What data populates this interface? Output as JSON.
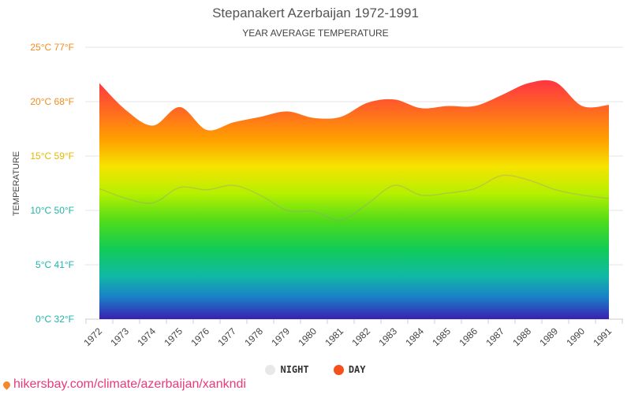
{
  "title": "Stepanakert Azerbaijan 1972-1991",
  "subtitle": "YEAR AVERAGE TEMPERATURE",
  "watermark": "hikersbay.com/climate/azerbaijan/xankndi",
  "legend": {
    "night_label": "NIGHT",
    "day_label": "DAY",
    "night_color": "#e8e8e8",
    "day_color": "#f4511e"
  },
  "colors": {
    "tick_warm": "#f28c1f",
    "tick_mid": "#e6b800",
    "tick_cool": "#1fb5a8",
    "axis_label": "#444444"
  },
  "chart_data": {
    "type": "area",
    "title": "Stepanakert Azerbaijan 1972-1991",
    "subtitle": "YEAR AVERAGE TEMPERATURE",
    "ylabel": "TEMPERATURE",
    "xlabel": "",
    "ylim": [
      0,
      25
    ],
    "y_ticks": [
      {
        "value": 0,
        "label": "0°C 32°F"
      },
      {
        "value": 5,
        "label": "5°C 41°F"
      },
      {
        "value": 10,
        "label": "10°C 50°F"
      },
      {
        "value": 15,
        "label": "15°C 59°F"
      },
      {
        "value": 20,
        "label": "20°C 68°F"
      },
      {
        "value": 25,
        "label": "25°C 77°F"
      }
    ],
    "grid": true,
    "legend_position": "bottom-center",
    "categories": [
      "1972",
      "1973",
      "1974",
      "1975",
      "1976",
      "1977",
      "1978",
      "1979",
      "1980",
      "1981",
      "1982",
      "1983",
      "1984",
      "1985",
      "1986",
      "1987",
      "1988",
      "1989",
      "1990",
      "1991"
    ],
    "series": [
      {
        "name": "DAY",
        "values": [
          21.7,
          19.2,
          17.8,
          19.5,
          17.4,
          18.1,
          18.6,
          19.1,
          18.5,
          18.6,
          19.9,
          20.2,
          19.4,
          19.6,
          19.6,
          20.6,
          21.7,
          21.8,
          19.6,
          19.7
        ]
      },
      {
        "name": "NIGHT",
        "values": [
          12.0,
          11.1,
          10.7,
          12.1,
          11.9,
          12.3,
          11.4,
          10.0,
          9.9,
          9.1,
          10.6,
          12.3,
          11.4,
          11.6,
          12.0,
          13.2,
          12.8,
          11.9,
          11.4,
          11.1
        ]
      }
    ]
  }
}
